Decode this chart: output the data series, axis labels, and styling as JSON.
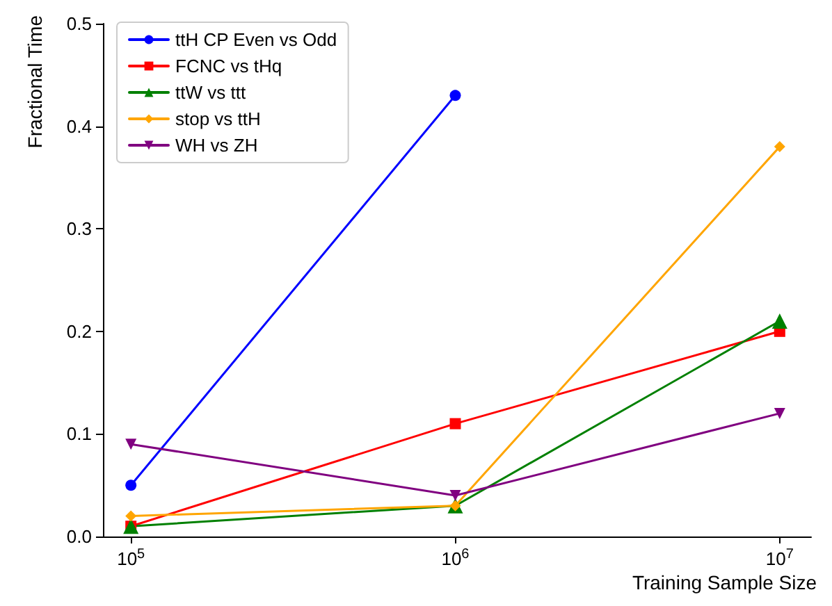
{
  "chart_data": {
    "type": "line",
    "xlabel": "Training Sample Size",
    "ylabel": "Fractional Time",
    "log": "x",
    "x": [
      100000,
      1000000,
      10000000
    ],
    "xlim": [
      82000,
      12500000
    ],
    "xticks": [
      {
        "value": 100000,
        "label": "10$^{5}$"
      },
      {
        "value": 1000000,
        "label": "10$^{6}$"
      },
      {
        "value": 10000000,
        "label": "10$^{7}$"
      }
    ],
    "ylim": [
      0,
      0.5
    ],
    "yticks": [
      {
        "value": 0,
        "label": "0.0"
      },
      0.1,
      0.2,
      0.3,
      0.4,
      0.5
    ],
    "grid": false,
    "legend": "top left",
    "series": [
      {
        "name": "ttH CP Even vs Odd",
        "color": "#0000ff",
        "marker": "circle",
        "values": [
          0.05,
          0.43,
          null
        ]
      },
      {
        "name": "FCNC vs tHq",
        "color": "#ff0000",
        "marker": "square",
        "values": [
          0.01,
          0.11,
          0.2
        ]
      },
      {
        "name": "ttW vs ttt",
        "color": "#008000",
        "marker": "triangle",
        "values": [
          0.01,
          0.03,
          0.21
        ]
      },
      {
        "name": "stop vs ttH",
        "color": "#ffa500",
        "marker": "diamond",
        "values": [
          0.02,
          0.03,
          0.38
        ]
      },
      {
        "name": "WH vs ZH",
        "color": "#800080",
        "marker": "triangle-down",
        "values": [
          0.09,
          0.04,
          0.12
        ]
      }
    ]
  }
}
